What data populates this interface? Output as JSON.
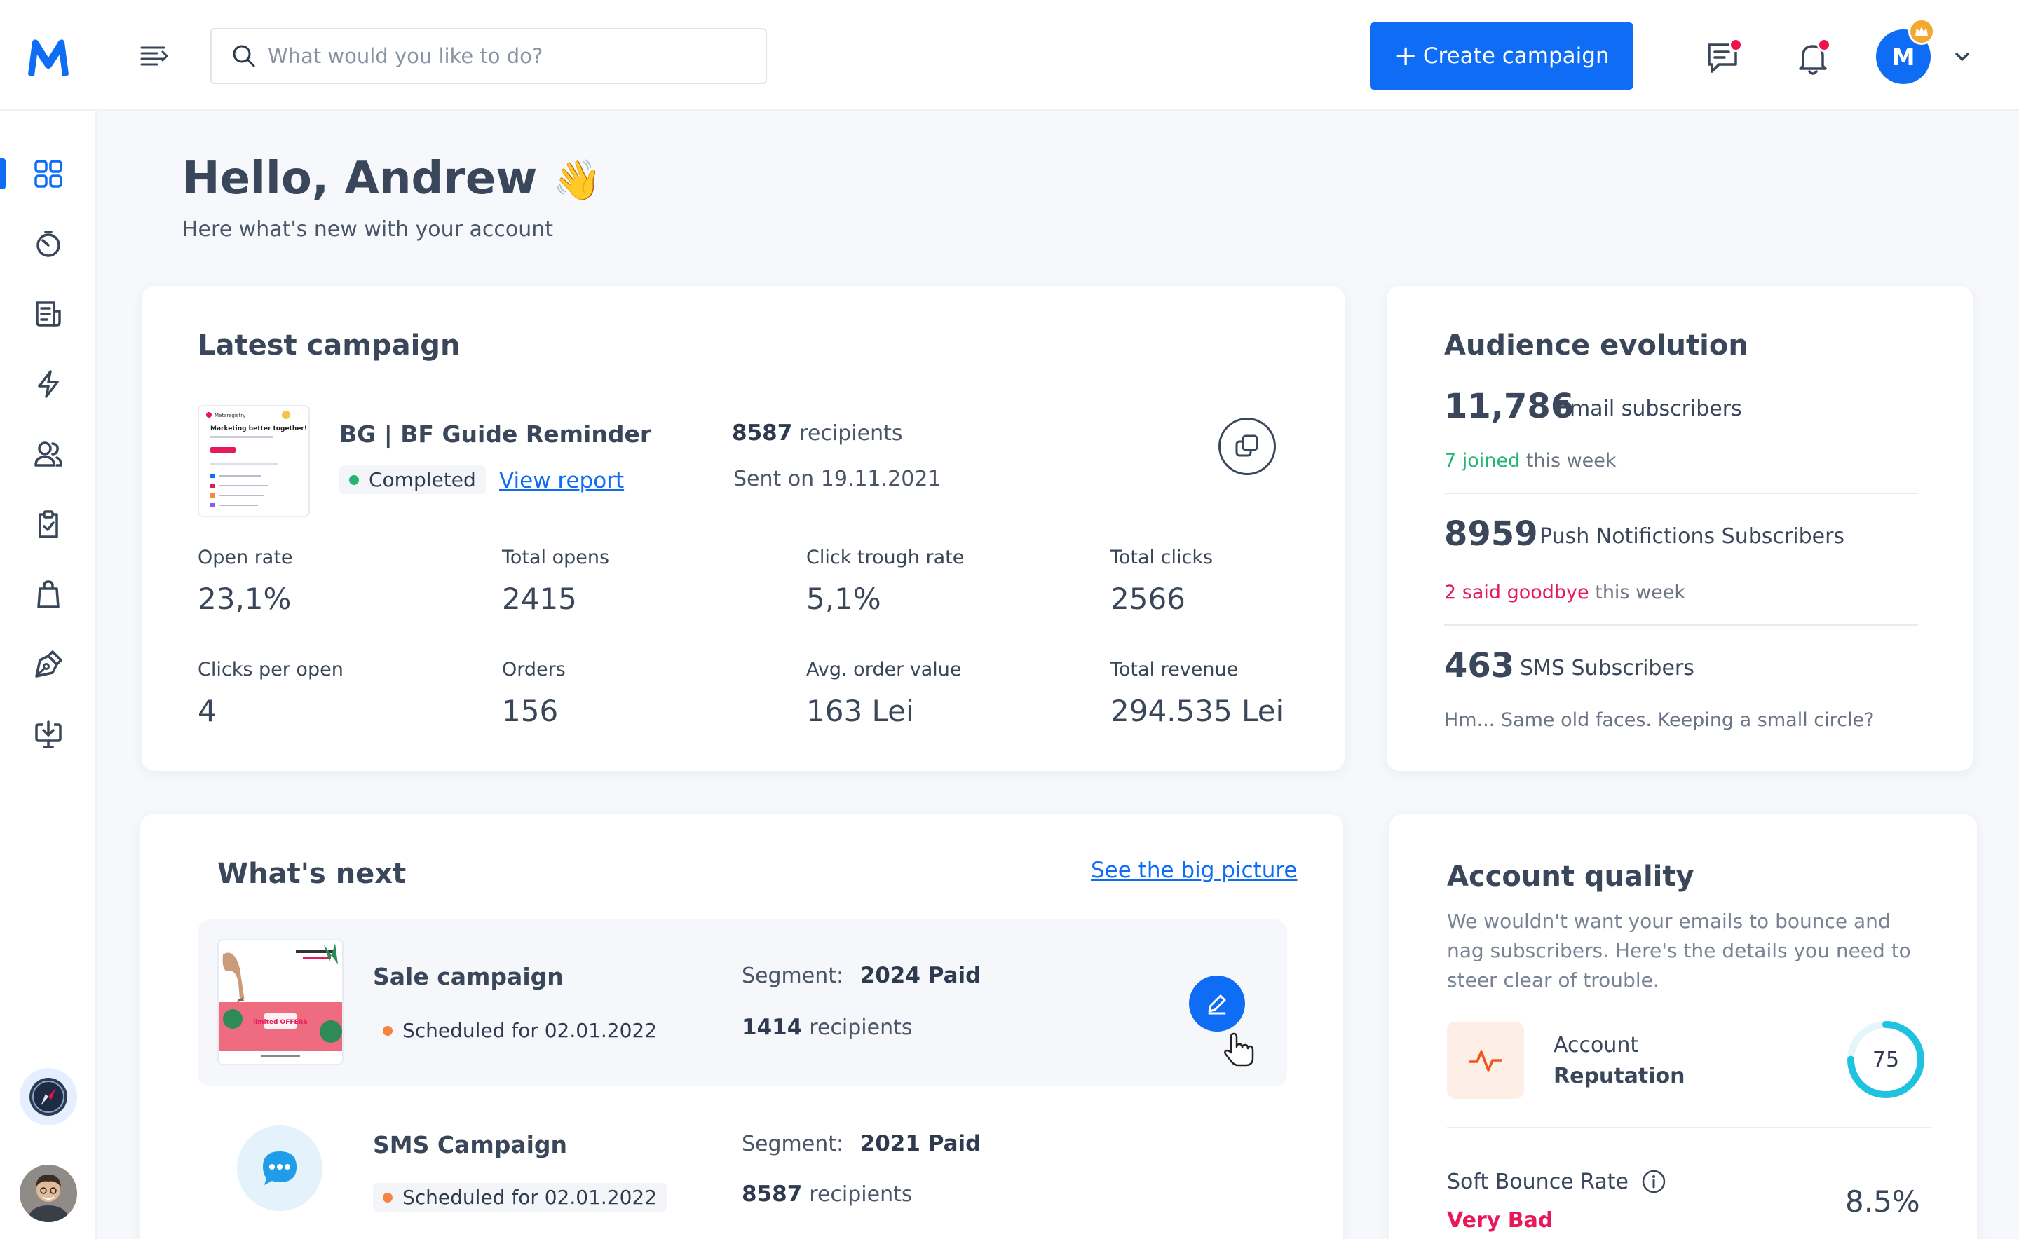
{
  "topbar": {
    "search_placeholder": "What would you like to do?",
    "create_label": "Create campaign",
    "avatar_initial": "M"
  },
  "greeting": {
    "title": "Hello, Andrew",
    "emoji": "👋",
    "subtitle": "Here what's new with your account"
  },
  "latest": {
    "title": "Latest campaign",
    "name": "BG | BF Guide Reminder",
    "status": "Completed",
    "view_report": "View report",
    "recipients_count": "8587",
    "recipients_label": "recipients",
    "sent_label": "Sent on",
    "sent_date": "19.11.2021",
    "thumb_brand": "Metaregistry",
    "thumb_heading": "Marketing better together!",
    "metrics": [
      {
        "label": "Open rate",
        "value": "23,1%"
      },
      {
        "label": "Total opens",
        "value": "2415"
      },
      {
        "label": "Click trough rate",
        "value": "5,1%"
      },
      {
        "label": "Total clicks",
        "value": "2566"
      },
      {
        "label": "Clicks per open",
        "value": "4"
      },
      {
        "label": "Orders",
        "value": "156"
      },
      {
        "label": "Avg. order value",
        "value": "163 Lei"
      },
      {
        "label": "Total revenue",
        "value": "294.535 Lei"
      }
    ]
  },
  "audience": {
    "title": "Audience evolution",
    "email_count": "11,786",
    "email_label": "Email subscribers",
    "email_note_highlight": "7 joined",
    "email_note_rest": "this week",
    "push_count": "8959",
    "push_label": "Push Notifictions Subscribers",
    "push_note_highlight": "2 said goodbye",
    "push_note_rest": "this week",
    "sms_count": "463",
    "sms_label": "SMS Subscribers",
    "sms_note": "Hm... Same old faces. Keeping a small circle?"
  },
  "next": {
    "title": "What's next",
    "link": "See the big picture",
    "segment_label": "Segment:",
    "items": [
      {
        "name": "Sale campaign",
        "status": "Scheduled for 02.01.2022",
        "segment": "2024 Paid",
        "recipients_count": "1414",
        "recipients_label": "recipients",
        "thumb_text": "limited OFFERS"
      },
      {
        "name": "SMS Campaign",
        "status": "Scheduled for 02.01.2022",
        "segment": "2021 Paid",
        "recipients_count": "8587",
        "recipients_label": "recipients"
      }
    ]
  },
  "quality": {
    "title": "Account quality",
    "description": "We wouldn't want your emails to bounce and nag subscribers. Here's the details you need to steer clear of trouble.",
    "reputation_line1": "Account",
    "reputation_line2": "Reputation",
    "reputation_score": "75",
    "reputation_fraction": 0.75,
    "bounce_label": "Soft Bounce Rate",
    "bounce_status": "Very Bad",
    "bounce_value": "8.5%"
  },
  "colors": {
    "primary": "#0e6cf5",
    "success": "#22b573",
    "danger": "#e8195a",
    "warning": "#f5853f",
    "ring": "#1fc3e0"
  },
  "icons": {
    "sidebar": [
      "dashboard-icon",
      "gauge-icon",
      "newsletter-icon",
      "automation-icon",
      "audience-icon",
      "tasks-icon",
      "ecommerce-icon",
      "design-icon",
      "download-icon"
    ]
  }
}
